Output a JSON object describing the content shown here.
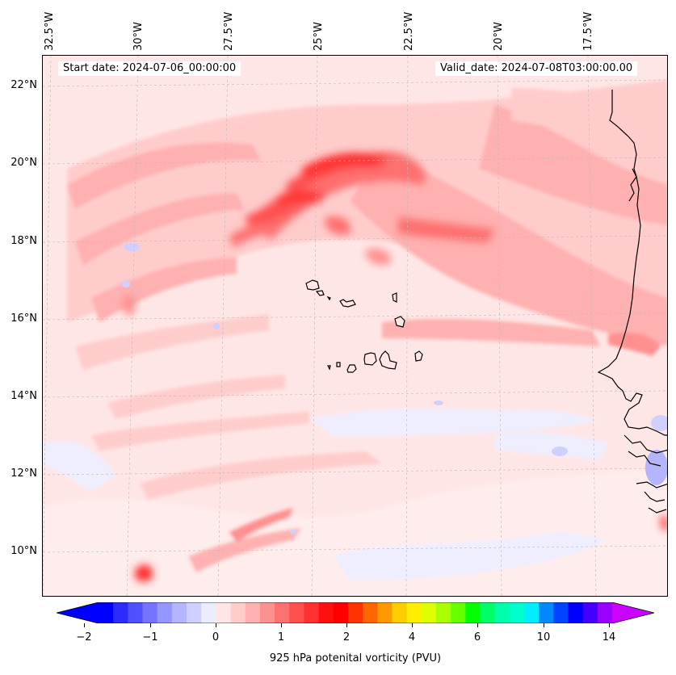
{
  "map": {
    "start_date": "Start date: 2024-07-06_00:00:00",
    "valid_date": "Valid_date: 2024-07-08T03:00:00.00",
    "longitude_labels": [
      "32.5°W",
      "30°W",
      "27.5°W",
      "25°W",
      "22.5°W",
      "20°W",
      "17.5°W"
    ],
    "latitude_labels": [
      "22°N",
      "20°N",
      "18°N",
      "16°N",
      "14°N",
      "12°N",
      "10°N"
    ],
    "lon_range_deg_W": [
      32.6,
      15.3
    ],
    "lat_range_deg_N": [
      8.9,
      22.8
    ]
  },
  "colorbar": {
    "label": "925 hPa potenital vorticity (PVU)",
    "tick_labels": [
      "−2",
      "−1",
      "0",
      "1",
      "2",
      "4",
      "6",
      "10",
      "14"
    ],
    "colors": [
      "#0000ff",
      "#2b2bff",
      "#5050ff",
      "#7474ff",
      "#9696ff",
      "#b4b4ff",
      "#d0d0ff",
      "#ececff",
      "#ffe6e6",
      "#ffcccc",
      "#ffb0b0",
      "#ff9090",
      "#ff7070",
      "#ff5050",
      "#ff3030",
      "#ff1010",
      "#ff0000",
      "#ff3300",
      "#ff6600",
      "#ff9900",
      "#ffcc00",
      "#ffee00",
      "#ddff00",
      "#aaff00",
      "#66ff00",
      "#00ff00",
      "#00ff66",
      "#00ffaa",
      "#00ffcc",
      "#00eeff",
      "#0088ff",
      "#0044ff",
      "#0000ff",
      "#4400ff",
      "#9900ff"
    ],
    "extend_low_color": "#0000ff",
    "extend_high_color": "#cc00ff"
  }
}
